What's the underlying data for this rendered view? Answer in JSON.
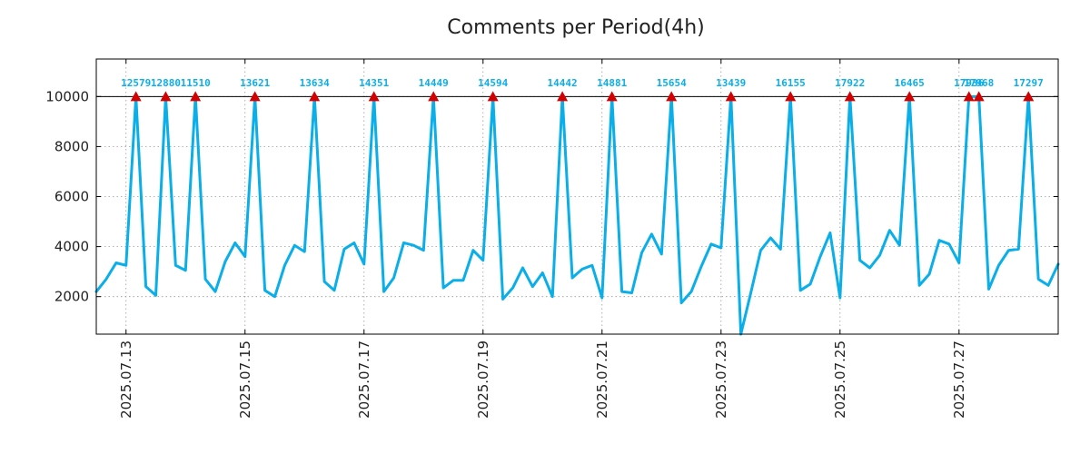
{
  "chart_data": {
    "type": "line",
    "title": "Comments per Period(4h)",
    "xlabel": "",
    "ylabel": "",
    "ylim": [
      500,
      11500
    ],
    "x_range": [
      "2025.07.12 12:00",
      "2025.07.28 16:00"
    ],
    "period_hours": 4,
    "yticks": [
      2000,
      4000,
      6000,
      8000,
      10000
    ],
    "xticks": [
      "2025.07.13",
      "2025.07.15",
      "2025.07.17",
      "2025.07.19",
      "2025.07.21",
      "2025.07.23",
      "2025.07.25",
      "2025.07.27"
    ],
    "threshold": 10000,
    "clip_value": 10000,
    "line_color": "#0aaee8",
    "marker_color": "#d40000",
    "label_color": "#0aaee8",
    "threshold_color": "#000000",
    "series": [
      {
        "name": "comments",
        "values": [
          2200,
          2700,
          3350,
          3250,
          12579,
          2400,
          2050,
          12880,
          3250,
          3050,
          11510,
          2700,
          2200,
          3400,
          4150,
          3600,
          13621,
          2250,
          2000,
          3250,
          4050,
          3800,
          13634,
          2600,
          2250,
          3900,
          4150,
          3300,
          14351,
          2200,
          2750,
          4150,
          4050,
          3850,
          14449,
          2350,
          2650,
          2650,
          3850,
          3450,
          14594,
          1900,
          2350,
          3150,
          2400,
          2950,
          2000,
          14442,
          2750,
          3100,
          3250,
          1950,
          14881,
          2200,
          2150,
          3750,
          4500,
          3700,
          15654,
          1750,
          2200,
          3200,
          4100,
          3950,
          13439,
          500,
          2150,
          3850,
          4350,
          3900,
          16155,
          2250,
          2500,
          3600,
          4550,
          1950,
          17922,
          3450,
          3150,
          3650,
          4650,
          4050,
          16465,
          2450,
          2900,
          4250,
          4100,
          3350,
          17936,
          17968,
          2300,
          3250,
          3850,
          3900,
          17297,
          2700,
          2450,
          3300
        ]
      }
    ],
    "peaks": [
      {
        "index": 4,
        "label": "12579"
      },
      {
        "index": 7,
        "label": "12880"
      },
      {
        "index": 10,
        "label": "11510"
      },
      {
        "index": 16,
        "label": "13621"
      },
      {
        "index": 22,
        "label": "13634"
      },
      {
        "index": 28,
        "label": "14351"
      },
      {
        "index": 34,
        "label": "14449"
      },
      {
        "index": 40,
        "label": "14594"
      },
      {
        "index": 47,
        "label": "14442"
      },
      {
        "index": 52,
        "label": "14881"
      },
      {
        "index": 58,
        "label": "15654"
      },
      {
        "index": 64,
        "label": "13439"
      },
      {
        "index": 70,
        "label": "16155"
      },
      {
        "index": 76,
        "label": "17922"
      },
      {
        "index": 82,
        "label": "16465"
      },
      {
        "index": 88,
        "label": "17936"
      },
      {
        "index": 89,
        "label": "17968"
      },
      {
        "index": 94,
        "label": "17297"
      }
    ]
  }
}
